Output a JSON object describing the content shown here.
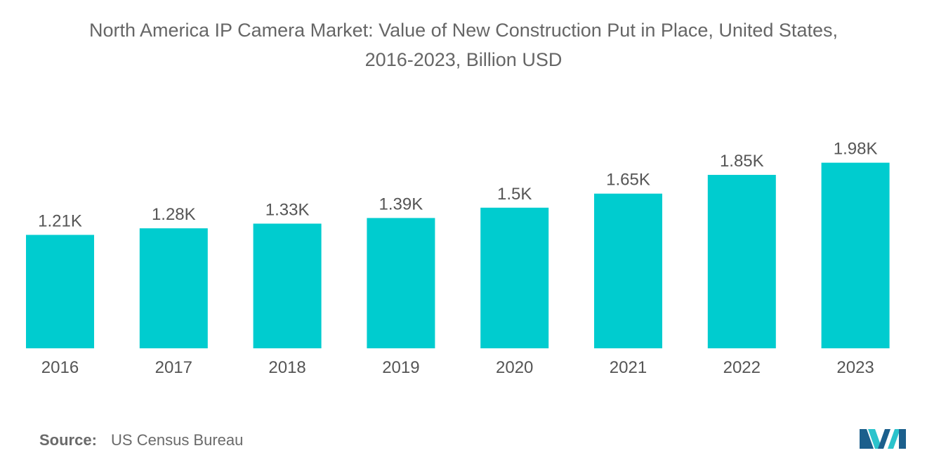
{
  "title_line1": "North America IP Camera Market: Value of New Construction Put in Place, United States,",
  "title_line2": "2016-2023, Billion USD",
  "source_label": "Source:",
  "source_value": "US Census Bureau",
  "colors": {
    "bar": "#00cccf",
    "text": "#555555",
    "logo_dark": "#1b5f8c",
    "logo_light": "#2bc3cc"
  },
  "logo_icon": "mordor-intelligence-logo-icon",
  "chart_data": {
    "type": "bar",
    "categories": [
      "2016",
      "2017",
      "2018",
      "2019",
      "2020",
      "2021",
      "2022",
      "2023"
    ],
    "values": [
      1210,
      1280,
      1330,
      1390,
      1500,
      1650,
      1850,
      1980
    ],
    "data_labels": [
      "1.21K",
      "1.28K",
      "1.33K",
      "1.39K",
      "1.5K",
      "1.65K",
      "1.85K",
      "1.98K"
    ],
    "title": "North America IP Camera Market: Value of New Construction Put in Place, United States, 2016-2023, Billion USD",
    "xlabel": "",
    "ylabel": "",
    "ylim": [
      0,
      2200
    ],
    "grid": false,
    "legend": "none"
  }
}
